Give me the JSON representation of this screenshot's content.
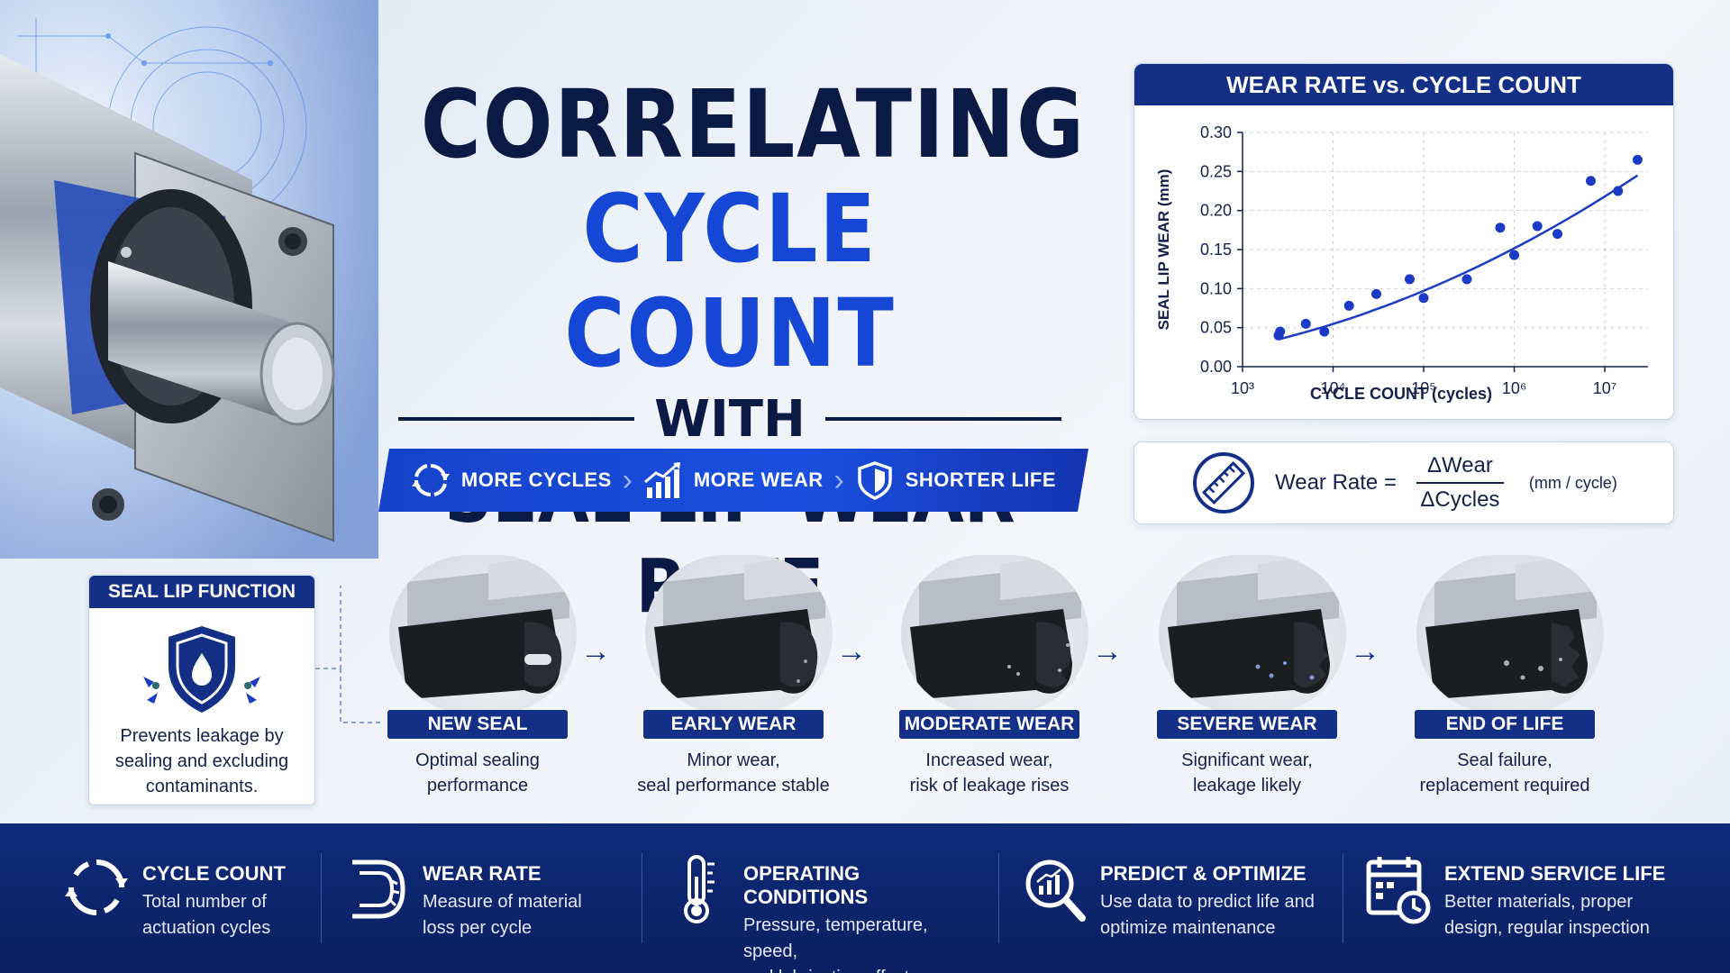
{
  "title": {
    "line1": "CORRELATING",
    "line2": "CYCLE COUNT",
    "line3": "WITH",
    "line4": "SEAL LIP WEAR RATE"
  },
  "ribbon": [
    {
      "label": "MORE CYCLES",
      "icon": "cycle-arrows-icon"
    },
    {
      "label": "MORE WEAR",
      "icon": "rising-bars-icon"
    },
    {
      "label": "SHORTER LIFE",
      "icon": "shield-icon"
    }
  ],
  "chart_data": {
    "type": "scatter",
    "title": "WEAR RATE vs. CYCLE COUNT",
    "xlabel": "CYCLE COUNT (cycles)",
    "ylabel": "SEAL LIP WEAR (mm)",
    "x_scale": "log",
    "xlim": [
      1000,
      30000000
    ],
    "ylim": [
      0.0,
      0.3
    ],
    "x_ticks": [
      "10^3",
      "10^4",
      "10^5",
      "10^6",
      "10^7"
    ],
    "y_ticks": [
      "0.00",
      "0.05",
      "0.10",
      "0.15",
      "0.20",
      "0.25",
      "0.30"
    ],
    "grid": "dashed",
    "color": "#1c3bc4",
    "points": {
      "x": [
        2500,
        2600,
        5000,
        8000,
        15000,
        30000,
        70000,
        100000,
        300000,
        700000,
        1000000,
        1800000,
        3000000,
        7000000,
        14000000,
        23000000
      ],
      "y": [
        0.04,
        0.045,
        0.055,
        0.045,
        0.078,
        0.093,
        0.112,
        0.088,
        0.112,
        0.178,
        0.143,
        0.18,
        0.17,
        0.238,
        0.225,
        0.265
      ]
    },
    "trendline": {
      "x": [
        2500,
        23000000
      ],
      "y": [
        0.035,
        0.245
      ]
    }
  },
  "formula": {
    "label": "Wear Rate =",
    "numerator": "ΔWear",
    "denominator": "ΔCycles",
    "unit": "(mm / cycle)",
    "icon": "ruler-icon"
  },
  "function_card": {
    "title": "SEAL LIP FUNCTION",
    "text": "Prevents leakage by sealing and excluding contaminants.",
    "icon": "shield-droplet-icon"
  },
  "stages": [
    {
      "label": "NEW SEAL",
      "desc_line1": "Optimal sealing",
      "desc_line2": "performance"
    },
    {
      "label": "EARLY WEAR",
      "desc_line1": "Minor wear,",
      "desc_line2": "seal performance stable"
    },
    {
      "label": "MODERATE WEAR",
      "desc_line1": "Increased wear,",
      "desc_line2": "risk of leakage rises"
    },
    {
      "label": "SEVERE WEAR",
      "desc_line1": "Significant wear,",
      "desc_line2": "leakage likely"
    },
    {
      "label": "END OF LIFE",
      "desc_line1": "Seal failure,",
      "desc_line2": "replacement required"
    }
  ],
  "bottom": [
    {
      "title": "CYCLE COUNT",
      "line1": "Total number of",
      "line2": "actuation cycles",
      "icon": "cycle-icon"
    },
    {
      "title": "WEAR RATE",
      "line1": "Measure of material",
      "line2": "loss per cycle",
      "icon": "seal-profile-icon"
    },
    {
      "title": "OPERATING CONDITIONS",
      "line1": "Pressure, temperature, speed,",
      "line2": "and lubrication affect wear",
      "icon": "thermometer-icon"
    },
    {
      "title": "PREDICT & OPTIMIZE",
      "line1": "Use data to predict life and",
      "line2": "optimize maintenance",
      "icon": "magnifier-chart-icon"
    },
    {
      "title": "EXTEND SERVICE LIFE",
      "line1": "Better materials, proper",
      "line2": "design, regular inspection",
      "icon": "calendar-clock-icon"
    }
  ],
  "colors": {
    "navy": "#0b1a45",
    "accent_blue": "#1546d6",
    "panel_header": "#132f86",
    "bottom_strip": "#0f2a7a"
  }
}
